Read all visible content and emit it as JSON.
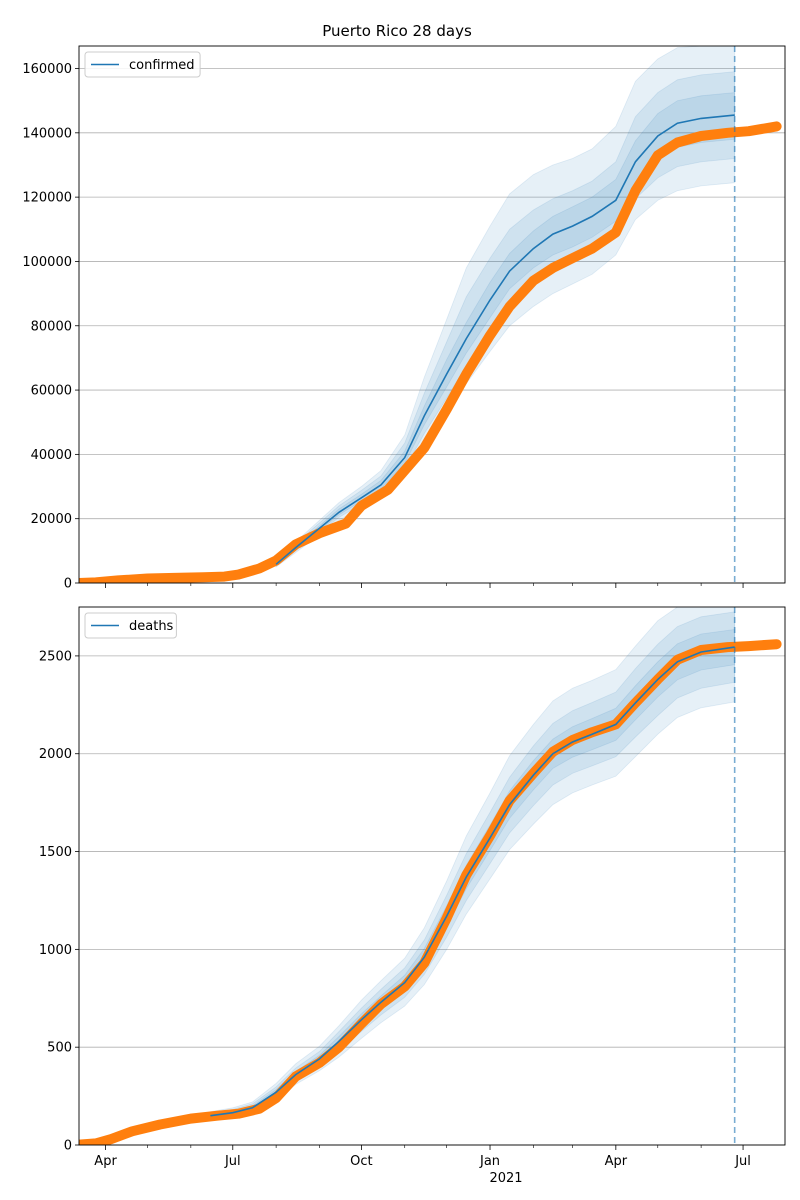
{
  "chart_data": [
    {
      "type": "line",
      "title": "Puerto Rico 28 days",
      "xlabel": "",
      "ylabel": "",
      "ylim": [
        0,
        167000
      ],
      "grid": "horizontal",
      "legend_placement": "top-left",
      "x_ticks": [
        "Apr",
        "Jul",
        "Oct",
        "Jan",
        "Apr",
        "Jul"
      ],
      "y_ticks": [
        "0",
        "20000",
        "40000",
        "60000",
        "80000",
        "100000",
        "120000",
        "140000",
        "160000"
      ],
      "forecast_start": "2021-06-25",
      "series": [
        {
          "name": "confirmed",
          "kind": "forecast-median",
          "color": "#1f77b4",
          "points": [
            [
              "2020-08-01",
              5800
            ],
            [
              "2020-08-15",
              11000
            ],
            [
              "2020-09-01",
              17000
            ],
            [
              "2020-09-15",
              22000
            ],
            [
              "2020-10-01",
              26500
            ],
            [
              "2020-10-15",
              30500
            ],
            [
              "2020-11-01",
              39000
            ],
            [
              "2020-11-15",
              52000
            ],
            [
              "2020-12-01",
              65000
            ],
            [
              "2020-12-15",
              76000
            ],
            [
              "2021-01-01",
              88000
            ],
            [
              "2021-01-15",
              97000
            ],
            [
              "2021-02-01",
              104000
            ],
            [
              "2021-02-15",
              108500
            ],
            [
              "2021-03-01",
              111000
            ],
            [
              "2021-03-15",
              114000
            ],
            [
              "2021-04-01",
              119000
            ],
            [
              "2021-04-15",
              131000
            ],
            [
              "2021-05-01",
              139000
            ],
            [
              "2021-05-15",
              143000
            ],
            [
              "2021-06-01",
              144500
            ],
            [
              "2021-06-25",
              145500
            ]
          ],
          "bands": [
            {
              "lower": [
                5000,
                9500,
                15000,
                19500,
                23500,
                27000,
                33500,
                43000,
                53000,
                62000,
                72000,
                80000,
                86000,
                90000,
                93000,
                96000,
                102000,
                113000,
                119000,
                122000,
                123500,
                124500
              ],
              "upper": [
                6600,
                12800,
                19500,
                25000,
                30000,
                35000,
                46000,
                64000,
                82000,
                98000,
                111000,
                121000,
                127000,
                130000,
                132000,
                135000,
                142000,
                156000,
                163000,
                166500,
                167000,
                167000
              ]
            },
            {
              "lower": [
                5200,
                10000,
                15800,
                20400,
                24600,
                28200,
                35500,
                46500,
                57500,
                67500,
                78000,
                86500,
                92500,
                96500,
                99500,
                102500,
                108000,
                119500,
                126000,
                129500,
                131000,
                132000
              ],
              "upper": [
                6400,
                12300,
                18700,
                24000,
                28800,
                33300,
                43500,
                59000,
                75000,
                89000,
                101000,
                110000,
                116000,
                119500,
                122000,
                125000,
                131000,
                145000,
                152500,
                156500,
                158000,
                159000
              ]
            },
            {
              "lower": [
                5500,
                10500,
                16400,
                21200,
                25500,
                29300,
                37200,
                49200,
                61000,
                71500,
                82500,
                91500,
                98000,
                102000,
                104500,
                107500,
                112500,
                124500,
                132000,
                135500,
                137000,
                138000
              ],
              "upper": [
                6100,
                11600,
                17800,
                23000,
                27600,
                31900,
                41000,
                55000,
                69500,
                81000,
                93500,
                102500,
                109500,
                114000,
                117000,
                120000,
                125500,
                137500,
                146000,
                150000,
                151500,
                152500
              ]
            }
          ]
        },
        {
          "name": "",
          "kind": "observed",
          "color": "#ff7f0e",
          "points": [
            [
              "2020-03-13",
              5
            ],
            [
              "2020-03-25",
              200
            ],
            [
              "2020-04-10",
              800
            ],
            [
              "2020-05-01",
              1400
            ],
            [
              "2020-05-20",
              1600
            ],
            [
              "2020-06-10",
              1800
            ],
            [
              "2020-06-25",
              2000
            ],
            [
              "2020-07-05",
              2600
            ],
            [
              "2020-07-20",
              4500
            ],
            [
              "2020-08-01",
              7000
            ],
            [
              "2020-08-15",
              12000
            ],
            [
              "2020-09-01",
              15500
            ],
            [
              "2020-09-20",
              18500
            ],
            [
              "2020-10-01",
              24000
            ],
            [
              "2020-10-20",
              29000
            ],
            [
              "2020-11-01",
              35000
            ],
            [
              "2020-11-15",
              42000
            ],
            [
              "2020-12-01",
              54000
            ],
            [
              "2020-12-15",
              65000
            ],
            [
              "2021-01-01",
              77000
            ],
            [
              "2021-01-15",
              86000
            ],
            [
              "2021-02-01",
              94000
            ],
            [
              "2021-02-15",
              98000
            ],
            [
              "2021-03-01",
              101000
            ],
            [
              "2021-03-15",
              104000
            ],
            [
              "2021-04-01",
              109000
            ],
            [
              "2021-04-15",
              122000
            ],
            [
              "2021-05-01",
              133000
            ],
            [
              "2021-05-15",
              137000
            ],
            [
              "2021-06-01",
              139000
            ],
            [
              "2021-06-20",
              140000
            ],
            [
              "2021-07-05",
              140500
            ],
            [
              "2021-07-25",
              142000
            ]
          ]
        }
      ]
    },
    {
      "type": "line",
      "title": "",
      "xlabel": "2021",
      "ylabel": "",
      "ylim": [
        0,
        2750
      ],
      "grid": "horizontal",
      "legend_placement": "top-left",
      "x_ticks": [
        "Apr",
        "Jul",
        "Oct",
        "Jan",
        "Apr",
        "Jul"
      ],
      "y_ticks": [
        "0",
        "500",
        "1000",
        "1500",
        "2000",
        "2500"
      ],
      "forecast_start": "2021-06-25",
      "series": [
        {
          "name": "deaths",
          "kind": "forecast-median",
          "color": "#1f77b4",
          "points": [
            [
              "2020-06-15",
              150
            ],
            [
              "2020-07-01",
              165
            ],
            [
              "2020-07-15",
              190
            ],
            [
              "2020-08-01",
              270
            ],
            [
              "2020-08-15",
              360
            ],
            [
              "2020-09-01",
              440
            ],
            [
              "2020-09-15",
              530
            ],
            [
              "2020-10-01",
              640
            ],
            [
              "2020-10-15",
              730
            ],
            [
              "2020-11-01",
              830
            ],
            [
              "2020-11-15",
              960
            ],
            [
              "2020-12-01",
              1170
            ],
            [
              "2020-12-15",
              1370
            ],
            [
              "2021-01-01",
              1570
            ],
            [
              "2021-01-15",
              1740
            ],
            [
              "2021-02-01",
              1890
            ],
            [
              "2021-02-15",
              2000
            ],
            [
              "2021-03-01",
              2060
            ],
            [
              "2021-03-15",
              2100
            ],
            [
              "2021-04-01",
              2150
            ],
            [
              "2021-04-15",
              2260
            ],
            [
              "2021-05-01",
              2380
            ],
            [
              "2021-05-15",
              2470
            ],
            [
              "2021-06-01",
              2520
            ],
            [
              "2021-06-25",
              2545
            ]
          ],
          "bands": [
            {
              "lower": [
                130,
                140,
                160,
                230,
                310,
                380,
                450,
                545,
                625,
                710,
                820,
                1000,
                1180,
                1360,
                1510,
                1640,
                1740,
                1800,
                1840,
                1885,
                1985,
                2100,
                2185,
                2235,
                2265
              ],
              "upper": [
                170,
                190,
                220,
                315,
                415,
                505,
                610,
                740,
                840,
                955,
                1110,
                1350,
                1580,
                1800,
                1990,
                2150,
                2270,
                2335,
                2375,
                2430,
                2550,
                2680,
                2750,
                2750,
                2750
              ]
            },
            {
              "lower": [
                136,
                148,
                170,
                244,
                328,
                402,
                480,
                580,
                665,
                755,
                872,
                1063,
                1250,
                1438,
                1595,
                1735,
                1840,
                1900,
                1938,
                1985,
                2085,
                2195,
                2285,
                2335,
                2365
              ],
              "upper": [
                164,
                182,
                210,
                297,
                393,
                478,
                580,
                700,
                796,
                905,
                1048,
                1277,
                1490,
                1700,
                1880,
                2040,
                2155,
                2220,
                2262,
                2315,
                2435,
                2560,
                2650,
                2700,
                2725
              ]
            },
            {
              "lower": [
                142,
                156,
                180,
                257,
                344,
                421,
                505,
                610,
                698,
                792,
                916,
                1117,
                1310,
                1505,
                1670,
                1815,
                1925,
                1982,
                2020,
                2068,
                2173,
                2290,
                2378,
                2428,
                2455
              ],
              "upper": [
                158,
                174,
                200,
                283,
                376,
                459,
                555,
                670,
                762,
                868,
                1004,
                1223,
                1430,
                1635,
                1810,
                1965,
                2075,
                2138,
                2180,
                2232,
                2347,
                2470,
                2562,
                2612,
                2635
              ]
            }
          ]
        },
        {
          "name": "",
          "kind": "observed",
          "color": "#ff7f0e",
          "points": [
            [
              "2020-03-13",
              2
            ],
            [
              "2020-03-25",
              8
            ],
            [
              "2020-04-05",
              30
            ],
            [
              "2020-04-20",
              70
            ],
            [
              "2020-05-10",
              105
            ],
            [
              "2020-06-01",
              135
            ],
            [
              "2020-06-20",
              150
            ],
            [
              "2020-07-05",
              160
            ],
            [
              "2020-07-20",
              185
            ],
            [
              "2020-08-01",
              240
            ],
            [
              "2020-08-15",
              350
            ],
            [
              "2020-09-01",
              420
            ],
            [
              "2020-09-15",
              500
            ],
            [
              "2020-10-01",
              620
            ],
            [
              "2020-10-15",
              720
            ],
            [
              "2020-11-01",
              810
            ],
            [
              "2020-11-15",
              930
            ],
            [
              "2020-12-01",
              1160
            ],
            [
              "2020-12-15",
              1380
            ],
            [
              "2021-01-01",
              1580
            ],
            [
              "2021-01-15",
              1760
            ],
            [
              "2021-02-01",
              1900
            ],
            [
              "2021-02-15",
              2010
            ],
            [
              "2021-03-01",
              2070
            ],
            [
              "2021-03-15",
              2110
            ],
            [
              "2021-04-01",
              2150
            ],
            [
              "2021-04-15",
              2260
            ],
            [
              "2021-05-01",
              2380
            ],
            [
              "2021-05-15",
              2480
            ],
            [
              "2021-06-01",
              2530
            ],
            [
              "2021-06-20",
              2545
            ],
            [
              "2021-07-05",
              2550
            ],
            [
              "2021-07-25",
              2560
            ]
          ]
        }
      ]
    }
  ]
}
